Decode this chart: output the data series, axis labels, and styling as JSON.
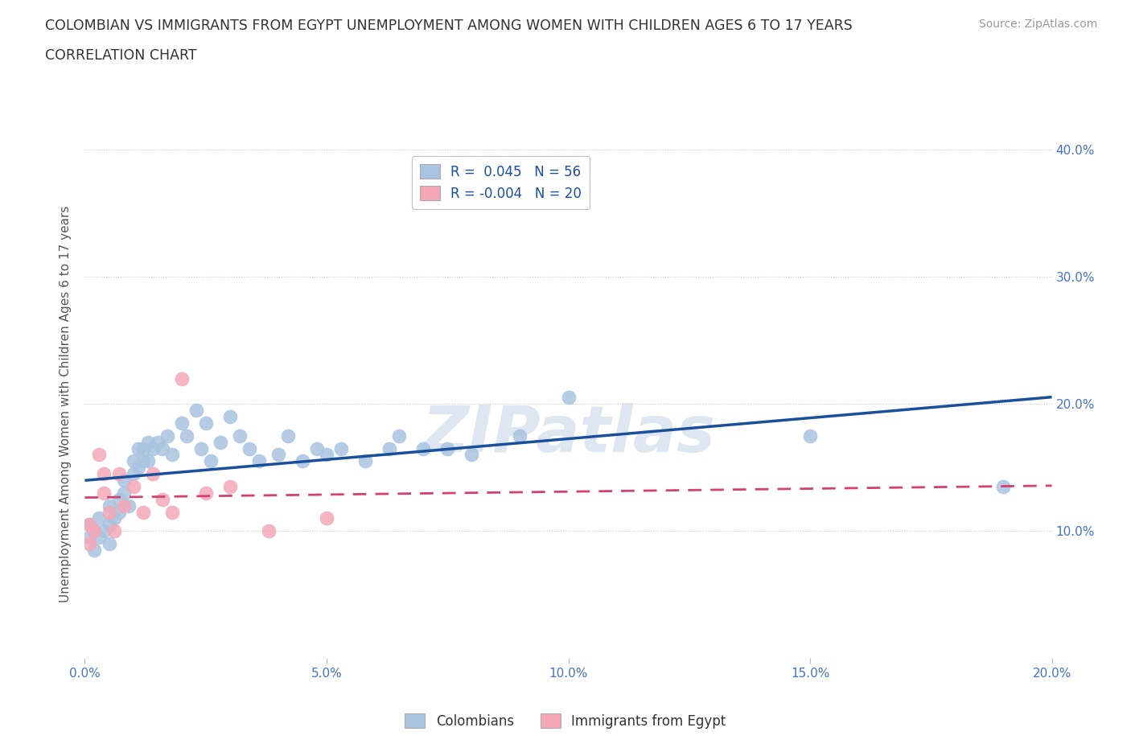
{
  "title_line1": "COLOMBIAN VS IMMIGRANTS FROM EGYPT UNEMPLOYMENT AMONG WOMEN WITH CHILDREN AGES 6 TO 17 YEARS",
  "title_line2": "CORRELATION CHART",
  "source": "Source: ZipAtlas.com",
  "ylabel": "Unemployment Among Women with Children Ages 6 to 17 years",
  "xlim": [
    0.0,
    0.2
  ],
  "ylim": [
    0.0,
    0.4
  ],
  "xticks": [
    0.0,
    0.05,
    0.1,
    0.15,
    0.2
  ],
  "yticks": [
    0.0,
    0.1,
    0.2,
    0.3,
    0.4
  ],
  "xtick_labels": [
    "0.0%",
    "5.0%",
    "10.0%",
    "15.0%",
    "20.0%"
  ],
  "ytick_labels_right": [
    "",
    "10.0%",
    "20.0%",
    "30.0%",
    "40.0%"
  ],
  "colombians_color": "#a8c4e0",
  "egypt_color": "#f4a8b8",
  "trend_colombians_color": "#1a4f9c",
  "trend_egypt_color": "#d44070",
  "legend_r_colombians": "R =  0.045",
  "legend_n_colombians": "N = 56",
  "legend_r_egypt": "R = -0.004",
  "legend_n_egypt": "N = 20",
  "watermark": "ZIPatlas",
  "colombians_x": [
    0.001,
    0.001,
    0.002,
    0.002,
    0.003,
    0.003,
    0.004,
    0.005,
    0.005,
    0.005,
    0.006,
    0.007,
    0.007,
    0.008,
    0.008,
    0.009,
    0.01,
    0.01,
    0.011,
    0.011,
    0.012,
    0.012,
    0.013,
    0.013,
    0.014,
    0.015,
    0.016,
    0.017,
    0.018,
    0.02,
    0.021,
    0.023,
    0.024,
    0.025,
    0.026,
    0.028,
    0.03,
    0.032,
    0.034,
    0.036,
    0.04,
    0.042,
    0.045,
    0.048,
    0.05,
    0.053,
    0.058,
    0.063,
    0.065,
    0.07,
    0.075,
    0.08,
    0.09,
    0.1,
    0.15,
    0.19
  ],
  "colombians_y": [
    0.105,
    0.095,
    0.1,
    0.085,
    0.11,
    0.095,
    0.1,
    0.12,
    0.105,
    0.09,
    0.11,
    0.125,
    0.115,
    0.14,
    0.13,
    0.12,
    0.155,
    0.145,
    0.165,
    0.15,
    0.165,
    0.155,
    0.17,
    0.155,
    0.165,
    0.17,
    0.165,
    0.175,
    0.16,
    0.185,
    0.175,
    0.195,
    0.165,
    0.185,
    0.155,
    0.17,
    0.19,
    0.175,
    0.165,
    0.155,
    0.16,
    0.175,
    0.155,
    0.165,
    0.16,
    0.165,
    0.155,
    0.165,
    0.175,
    0.165,
    0.165,
    0.16,
    0.175,
    0.205,
    0.175,
    0.135
  ],
  "egypt_x": [
    0.001,
    0.001,
    0.002,
    0.003,
    0.004,
    0.004,
    0.005,
    0.006,
    0.007,
    0.008,
    0.01,
    0.012,
    0.014,
    0.016,
    0.018,
    0.02,
    0.025,
    0.03,
    0.038,
    0.05
  ],
  "egypt_y": [
    0.105,
    0.09,
    0.1,
    0.16,
    0.145,
    0.13,
    0.115,
    0.1,
    0.145,
    0.12,
    0.135,
    0.115,
    0.145,
    0.125,
    0.115,
    0.22,
    0.13,
    0.135,
    0.1,
    0.11
  ]
}
